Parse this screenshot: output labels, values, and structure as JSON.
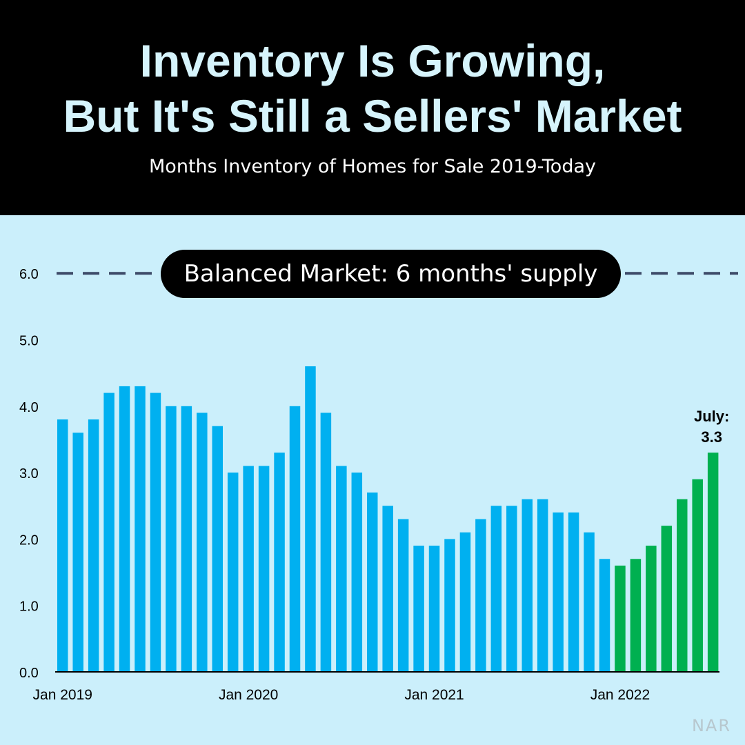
{
  "header": {
    "title_line1": "Inventory Is Growing,",
    "title_line2": "But It's Still a Sellers' Market",
    "subtitle": "Months Inventory of Homes for Sale 2019-Today"
  },
  "reference_line": {
    "label": "Balanced Market: 6 months' supply",
    "value": 6.0,
    "style": "dashed"
  },
  "callout": {
    "line1": "July:",
    "line2": "3.3"
  },
  "source": "NAR",
  "colors": {
    "header_bg": "#000000",
    "title": "#d6f4fc",
    "plot_bg": "#cbeffb",
    "bar_2019_2021": "#00b0f0",
    "bar_2022": "#00b050",
    "reference_line": "#3d4a68"
  },
  "chart_data": {
    "type": "bar",
    "ylim": [
      0,
      6
    ],
    "yticks": [
      "0.0",
      "1.0",
      "2.0",
      "3.0",
      "4.0",
      "5.0",
      "6.0"
    ],
    "grid": false,
    "x_tick_labels": [
      "Jan 2019",
      "Jan 2020",
      "Jan 2021",
      "Jan 2022"
    ],
    "categories": [
      "2019-01",
      "2019-02",
      "2019-03",
      "2019-04",
      "2019-05",
      "2019-06",
      "2019-07",
      "2019-08",
      "2019-09",
      "2019-10",
      "2019-11",
      "2019-12",
      "2020-01",
      "2020-02",
      "2020-03",
      "2020-04",
      "2020-05",
      "2020-06",
      "2020-07",
      "2020-08",
      "2020-09",
      "2020-10",
      "2020-11",
      "2020-12",
      "2021-01",
      "2021-02",
      "2021-03",
      "2021-04",
      "2021-05",
      "2021-06",
      "2021-07",
      "2021-08",
      "2021-09",
      "2021-10",
      "2021-11",
      "2021-12",
      "2022-01",
      "2022-02",
      "2022-03",
      "2022-04",
      "2022-05",
      "2022-06",
      "2022-07"
    ],
    "series": [
      {
        "color": "#00b0f0",
        "values": [
          3.8,
          3.6,
          3.8,
          4.2,
          4.3,
          4.3,
          4.2,
          4.0,
          4.0,
          3.9,
          3.7,
          3.0,
          3.1,
          3.1,
          3.3,
          4.0,
          4.6,
          3.9,
          3.1,
          3.0,
          2.7,
          2.5,
          2.3,
          1.9,
          1.9,
          2.0,
          2.1,
          2.3,
          2.5,
          2.5,
          2.6,
          2.6,
          2.4,
          2.4,
          2.1,
          1.7,
          null,
          null,
          null,
          null,
          null,
          null,
          null
        ]
      },
      {
        "color": "#00b050",
        "values": [
          null,
          null,
          null,
          null,
          null,
          null,
          null,
          null,
          null,
          null,
          null,
          null,
          null,
          null,
          null,
          null,
          null,
          null,
          null,
          null,
          null,
          null,
          null,
          null,
          null,
          null,
          null,
          null,
          null,
          null,
          null,
          null,
          null,
          null,
          null,
          null,
          1.6,
          1.7,
          1.9,
          2.2,
          2.6,
          2.9,
          3.3
        ]
      }
    ]
  }
}
